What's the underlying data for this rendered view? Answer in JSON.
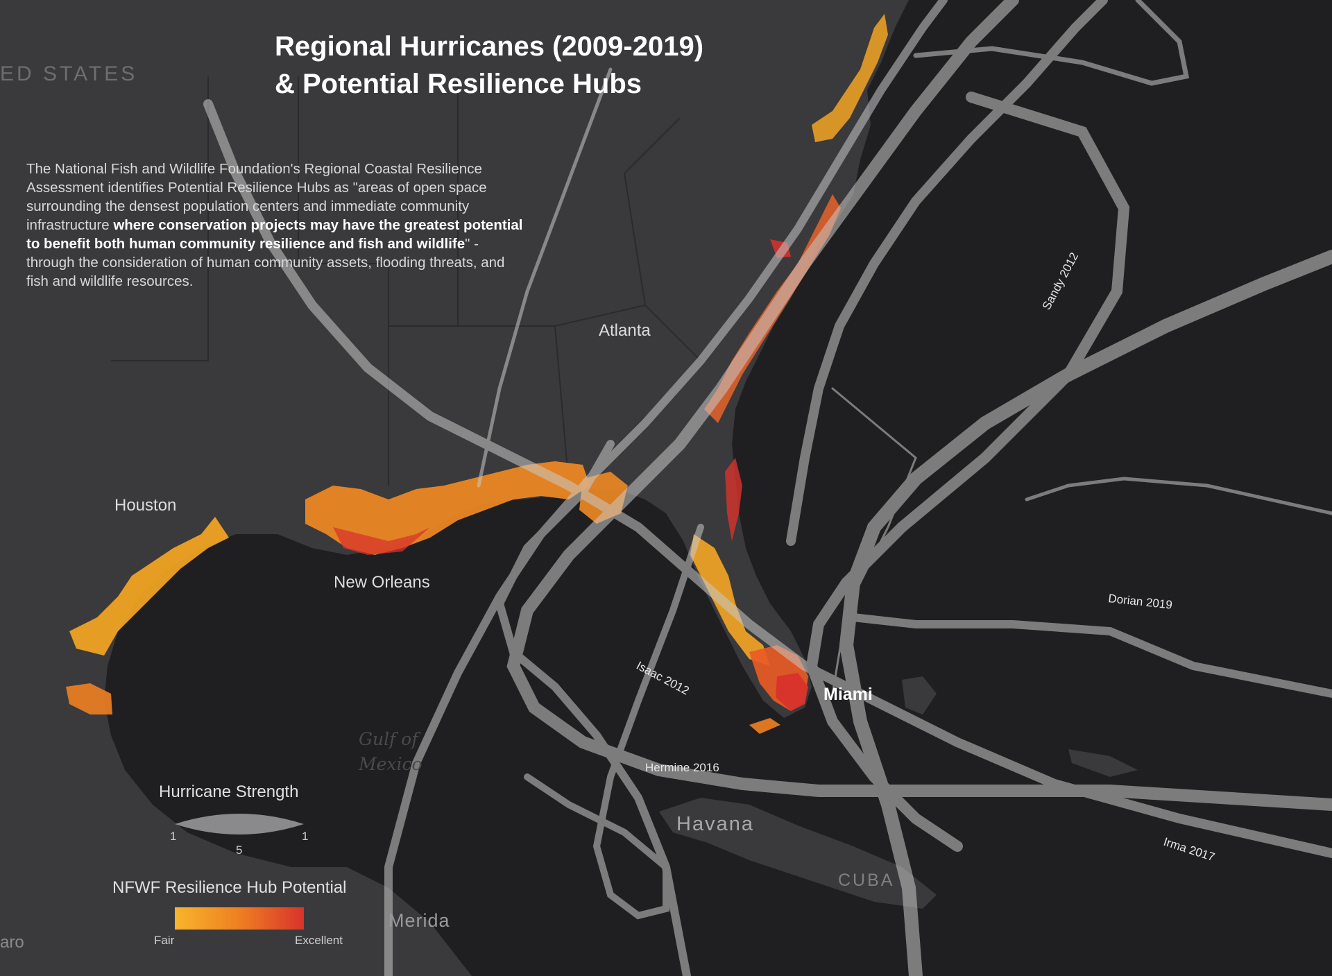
{
  "title": {
    "line1": "Regional Hurricanes (2009-2019)",
    "line2": "& Potential Resilience Hubs"
  },
  "intro": {
    "part1": "The National Fish and Wildlife Foundation's Regional Coastal Resilience Assessment identifies Potential Resilience Hubs as \"areas of open space surrounding the densest population centers and immediate community infrastructure ",
    "bold": "where conservation projects may have the greatest potential to benefit both human community resilience and fish and wildlife",
    "part2": "\" - through the consideration of human community assets, flooding threats, and fish and wildlife resources."
  },
  "cities": {
    "atlanta": "Atlanta",
    "houston": "Houston",
    "new_orleans": "New Orleans",
    "miami": "Miami",
    "havana": "Havana",
    "merida": "Merida",
    "cuba": "CUBA",
    "united_states": "ED STATES",
    "aro": "aro"
  },
  "gulf": {
    "line1": "Gulf of",
    "line2": "Mexico"
  },
  "storms": {
    "sandy": "Sandy 2012",
    "dorian": "Dorian 2019",
    "isaac": "Isaac 2012",
    "hermine": "Hermine 2016",
    "irma": "Irma 2017"
  },
  "legend": {
    "strength_title": "Hurricane Strength",
    "strength_left": "1",
    "strength_mid": "5",
    "strength_right": "1",
    "hub_title": "NFWF Resilience Hub Potential",
    "hub_low": "Fair",
    "hub_high": "Excellent",
    "ramp_colors": [
      "#f7b52b",
      "#ef7f22",
      "#d8332b"
    ]
  },
  "colors": {
    "background": "#1f1f21",
    "land": "#3a3a3c",
    "track": "#bdbdbd",
    "hub_fair": "#f7b52b",
    "hub_mid": "#ef7f22",
    "hub_excellent": "#d8332b"
  }
}
